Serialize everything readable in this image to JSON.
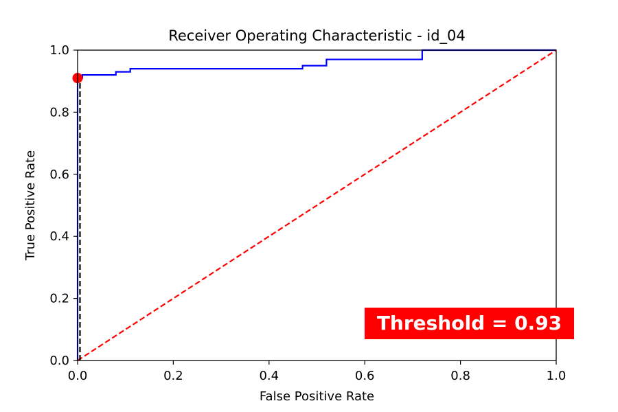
{
  "chart_data": {
    "type": "line",
    "title": "Receiver Operating Characteristic - id_04",
    "xlabel": "False Positive Rate",
    "ylabel": "True Positive Rate",
    "xlim": [
      0.0,
      1.0
    ],
    "ylim": [
      0.0,
      1.0
    ],
    "x_ticks": [
      "0.0",
      "0.2",
      "0.4",
      "0.6",
      "0.8",
      "1.0"
    ],
    "y_ticks": [
      "0.0",
      "0.2",
      "0.4",
      "0.6",
      "0.8",
      "1.0"
    ],
    "grid": false,
    "series": [
      {
        "style": "solid",
        "color": "#0000ff",
        "points": [
          [
            0.0,
            0.0
          ],
          [
            0.0,
            0.91
          ],
          [
            0.01,
            0.91
          ],
          [
            0.01,
            0.92
          ],
          [
            0.08,
            0.92
          ],
          [
            0.08,
            0.93
          ],
          [
            0.11,
            0.93
          ],
          [
            0.11,
            0.94
          ],
          [
            0.47,
            0.94
          ],
          [
            0.47,
            0.95
          ],
          [
            0.52,
            0.95
          ],
          [
            0.52,
            0.97
          ],
          [
            0.72,
            0.97
          ],
          [
            0.72,
            1.0
          ],
          [
            1.0,
            1.0
          ]
        ]
      },
      {
        "style": "dashed",
        "color": "#ff0000",
        "points": [
          [
            0.0,
            0.0
          ],
          [
            1.0,
            1.0
          ]
        ]
      },
      {
        "style": "dashed",
        "color": "#000000",
        "points": [
          [
            0.005,
            0.0
          ],
          [
            0.005,
            0.91
          ]
        ]
      }
    ],
    "marker": {
      "x": 0.0,
      "y": 0.91,
      "color": "#ff0000"
    },
    "annotation": {
      "text": "Threshold = 0.93",
      "background": "#ff0000",
      "color": "#ffffff",
      "placement": "bottom-right"
    }
  }
}
